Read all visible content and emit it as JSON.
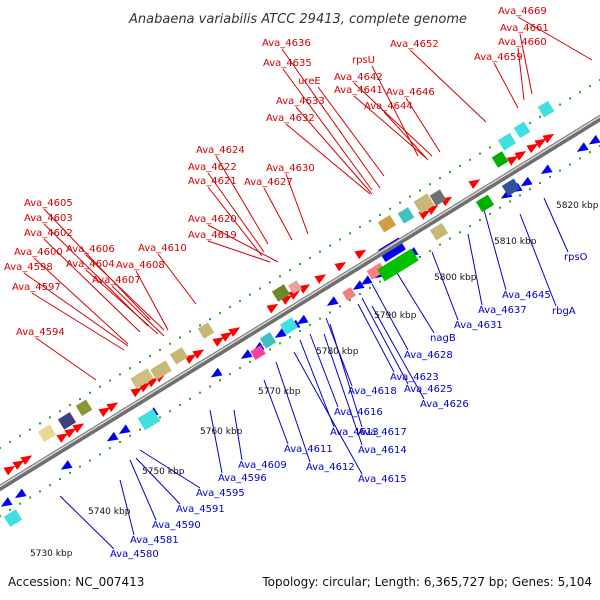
{
  "title": "Anabaena variabilis ATCC 29413, complete genome",
  "footer": {
    "accession": "Accession: NC_007413",
    "summary": "Topology: circular; Length: 6,365,727 bp; Genes: 5,104"
  },
  "colors": {
    "top_label": "#d40000",
    "bottom_label": "#0000cc",
    "forward_arrow": "#ff0000",
    "reverse_arrow": "#0000ee",
    "backbone": "#888888",
    "tick": "#22aa22"
  },
  "ruler": [
    {
      "label": "5730 kbp"
    },
    {
      "label": "5740 kbp"
    },
    {
      "label": "5750 kbp"
    },
    {
      "label": "5760 kbp"
    },
    {
      "label": "5770 kbp"
    },
    {
      "label": "5780 kbp"
    },
    {
      "label": "5790 kbp"
    },
    {
      "label": "5800 kbp"
    },
    {
      "label": "5810 kbp"
    },
    {
      "label": "5820 kbp"
    }
  ],
  "top_labels": [
    "Ava_4669",
    "Ava_4661",
    "Ava_4660",
    "Ava_4659",
    "Ava_4652",
    "Ava_4636",
    "rpsU",
    "Ava_4635",
    "Ava_4642",
    "ureE",
    "Ava_4641",
    "Ava_4646",
    "Ava_4633",
    "Ava_4644",
    "Ava_4632",
    "Ava_4624",
    "Ava_4622",
    "Ava_4630",
    "Ava_4621",
    "Ava_4627",
    "Ava_4605",
    "Ava_4603",
    "Ava_4620",
    "Ava_4602",
    "Ava_4619",
    "Ava_4606",
    "Ava_4610",
    "Ava_4600",
    "Ava_4604",
    "Ava_4608",
    "Ava_4598",
    "Ava_4607",
    "Ava_4597",
    "Ava_4594"
  ],
  "bottom_labels": [
    "rpsO",
    "Ava_4645",
    "rbgA",
    "Ava_4637",
    "Ava_4631",
    "nagB",
    "Ava_4628",
    "Ava_4623",
    "Ava_4625",
    "Ava_4618",
    "Ava_4626",
    "Ava_4616",
    "Ava_4617",
    "Ava_4613",
    "Ava_4614",
    "Ava_4611",
    "Ava_4612",
    "Ava_4609",
    "Ava_4615",
    "Ava_4596",
    "Ava_4595",
    "Ava_4591",
    "Ava_4590",
    "Ava_4581",
    "Ava_4580"
  ]
}
